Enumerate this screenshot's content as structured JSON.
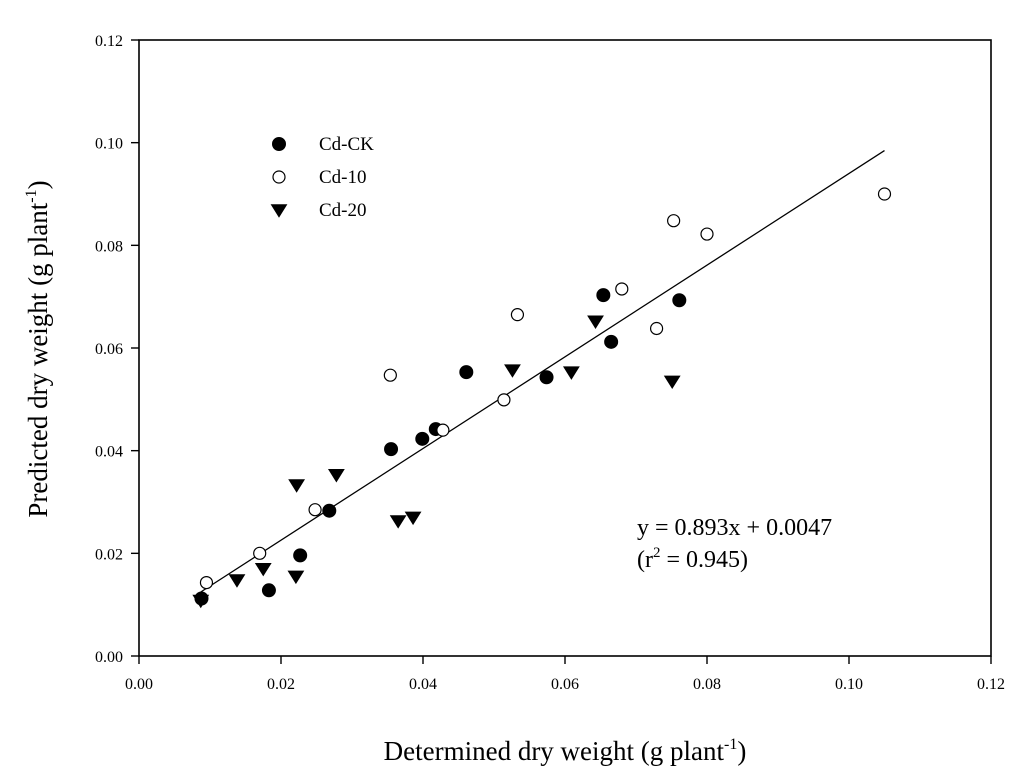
{
  "chart_data": {
    "type": "scatter",
    "xlabel": "Determined dry weight (g plant",
    "xlabel_sup": "-1",
    "xlabel_end": ")",
    "ylabel": "Predicted dry weight (g plant",
    "ylabel_sup": "-1",
    "ylabel_end": ")",
    "xlim": [
      0,
      0.12
    ],
    "ylim": [
      0,
      0.12
    ],
    "x_ticks": [
      "0.00",
      "0.02",
      "0.04",
      "0.06",
      "0.08",
      "0.10",
      "0.12"
    ],
    "y_ticks": [
      "0.00",
      "0.02",
      "0.04",
      "0.06",
      "0.08",
      "0.10",
      "0.12"
    ],
    "legend_position": "top-left",
    "series": [
      {
        "name": "Cd-CK",
        "marker": "filled-circle",
        "color": "#000000",
        "points": [
          [
            0.0088,
            0.0112
          ],
          [
            0.0183,
            0.0128
          ],
          [
            0.0227,
            0.0196
          ],
          [
            0.0268,
            0.0283
          ],
          [
            0.0355,
            0.0403
          ],
          [
            0.0399,
            0.0423
          ],
          [
            0.0418,
            0.0442
          ],
          [
            0.0461,
            0.0553
          ],
          [
            0.0574,
            0.0543
          ],
          [
            0.0654,
            0.0703
          ],
          [
            0.0665,
            0.0612
          ],
          [
            0.0761,
            0.0693
          ]
        ]
      },
      {
        "name": "Cd-10",
        "marker": "open-circle",
        "color": "#000000",
        "points": [
          [
            0.0095,
            0.0143
          ],
          [
            0.017,
            0.02
          ],
          [
            0.0248,
            0.0285
          ],
          [
            0.0354,
            0.0547
          ],
          [
            0.0428,
            0.044
          ],
          [
            0.0514,
            0.0499
          ],
          [
            0.0533,
            0.0665
          ],
          [
            0.068,
            0.0715
          ],
          [
            0.0729,
            0.0638
          ],
          [
            0.0753,
            0.0848
          ],
          [
            0.08,
            0.0822
          ],
          [
            0.105,
            0.09
          ]
        ]
      },
      {
        "name": "Cd-20",
        "marker": "filled-triangle-down",
        "color": "#000000",
        "points": [
          [
            0.0087,
            0.0108
          ],
          [
            0.0138,
            0.0148
          ],
          [
            0.0175,
            0.017
          ],
          [
            0.0221,
            0.0155
          ],
          [
            0.0222,
            0.0333
          ],
          [
            0.0278,
            0.0353
          ],
          [
            0.0365,
            0.0263
          ],
          [
            0.0386,
            0.027
          ],
          [
            0.0526,
            0.0557
          ],
          [
            0.0609,
            0.0553
          ],
          [
            0.0643,
            0.0652
          ],
          [
            0.0751,
            0.0535
          ]
        ]
      }
    ],
    "regression": {
      "slope": 0.893,
      "intercept": 0.0047,
      "x_range": [
        0.0087,
        0.105
      ]
    },
    "equation_line1": "y = 0.893x + 0.0047",
    "equation_line2_prefix": "(r",
    "equation_line2_sup": "2",
    "equation_line2_suffix": " = 0.945)"
  }
}
